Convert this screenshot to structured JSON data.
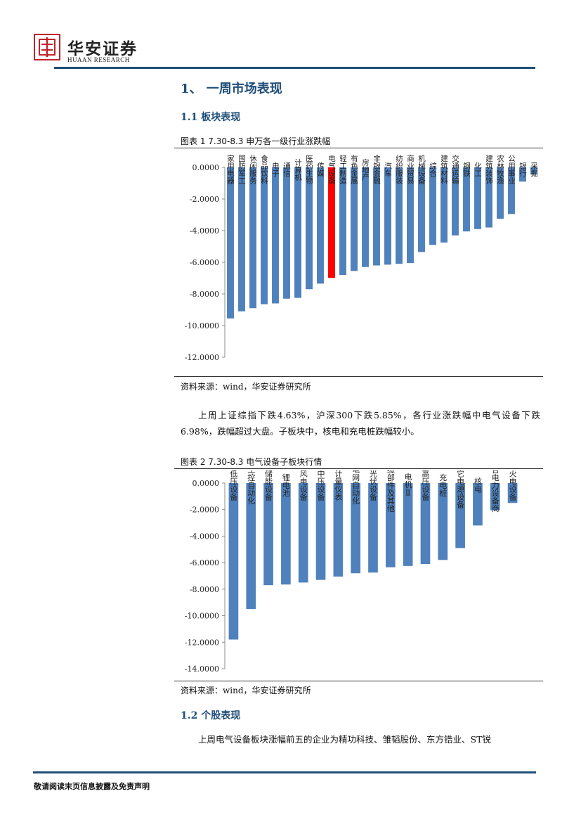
{
  "header": {
    "brand_cn": "华安证券",
    "brand_en": "HUAAN RESEARCH",
    "colors": {
      "logo_red": "#c0242b",
      "rule_blue": "#1f4e79"
    }
  },
  "section1": {
    "title": "1、 一周市场表现"
  },
  "section1_1": {
    "title": "1.1  板块表现"
  },
  "figure1": {
    "caption": "图表  1 7.30-8.3 申万各一级行业涨跌幅",
    "source": "资料来源：wind，华安证券研究所"
  },
  "paragraph1": "上周上证综指下跌4.63%，沪深300下跌5.85%，各行业涨跌幅中电气设备下跌6.98%，跌幅超过大盘。子板块中，核电和充电桩跌幅较小。",
  "figure2": {
    "caption": "图表  2 7.30-8.3 电气设备子板块行情",
    "source": "资料来源：wind，华安证券研究所"
  },
  "section1_2": {
    "title": "1.2  个股表现"
  },
  "paragraph2": "上周电气设备板块涨幅前五的企业为精功科技、雏韬股份、东方锆业、ST锐",
  "footer": {
    "text": "敬请阅读末页信息披露及免责声明"
  },
  "chart_data": [
    {
      "type": "bar",
      "categories": [
        "家用电器",
        "国防军工",
        "休闲服务",
        "食品饮料",
        "电子",
        "通信",
        "计算机",
        "医药生物",
        "传媒",
        "电气设备",
        "轻工制造",
        "有色金属",
        "房地产",
        "非银金融",
        "汽车",
        "纺织服装",
        "商业贸易",
        "机械设备",
        "综合",
        "建筑材料",
        "交通运输",
        "钢铁",
        "化工",
        "建筑装饰",
        "农林牧渔",
        "公用事业",
        "银行",
        "采掘"
      ],
      "values": [
        -9.55,
        -9.1,
        -8.9,
        -8.65,
        -8.6,
        -8.3,
        -8.25,
        -7.7,
        -7.35,
        -6.98,
        -6.8,
        -6.55,
        -6.3,
        -6.2,
        -6.15,
        -6.1,
        -6.05,
        -5.35,
        -4.9,
        -4.75,
        -4.3,
        -4.05,
        -3.9,
        -3.8,
        -3.25,
        -2.95,
        -0.9,
        -0.45
      ],
      "highlight": "电气设备",
      "colors": {
        "bar": "#4f81bd",
        "highlight": "#ff0000"
      },
      "yticks": [
        "0.0000",
        "-2.0000",
        "-4.0000",
        "-6.0000",
        "-8.0000",
        "-10.0000",
        "-12.0000"
      ],
      "ylim": [
        -12,
        0
      ],
      "grid": false,
      "legend": "none"
    },
    {
      "type": "bar",
      "categories": [
        "低压设备",
        "工控自动化",
        "储能设备",
        "锂电池",
        "风电设备",
        "中压设备",
        "计量仪表",
        "电网自动化",
        "光伏设备",
        "线缆部件及其他",
        "电机Ⅱ",
        "高压设备",
        "充电桩",
        "其它电源设备",
        "核电",
        "综合电力设备商",
        "火电设备"
      ],
      "values": [
        -11.8,
        -9.5,
        -7.7,
        -7.65,
        -7.5,
        -7.3,
        -7.05,
        -6.8,
        -6.75,
        -6.35,
        -6.25,
        -6.1,
        -5.8,
        -4.9,
        -3.2,
        -2.05,
        -1.5
      ],
      "colors": {
        "bar": "#4f81bd"
      },
      "yticks": [
        "0.0000",
        "-2.0000",
        "-4.0000",
        "-6.0000",
        "-8.0000",
        "-10.0000",
        "-12.0000",
        "-14.0000"
      ],
      "ylim": [
        -14,
        0
      ],
      "grid": false,
      "legend": "none"
    }
  ]
}
